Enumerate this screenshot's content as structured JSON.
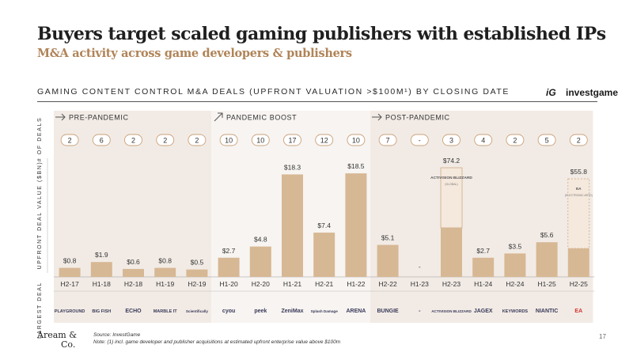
{
  "header": {
    "title": "Buyers target scaled gaming publishers with established IPs",
    "subtitle": "M&A activity across game developers & publishers",
    "chart_heading": "GAMING CONTENT CONTROL M&A DEALS (UPFRONT VALUATION >$100M¹) BY CLOSING DATE",
    "brand_icon": "iG",
    "brand_name": "investgame"
  },
  "footer": {
    "logo_line1": "Aream &",
    "logo_line2": "Co.",
    "source": "Source: InvestGame",
    "note": "Note: (1) incl. game developer and publisher acquisitions at estimated upfront enterprise value above $100m",
    "page_number": "17"
  },
  "chart_data": {
    "type": "bar",
    "title": "",
    "ylabel": "UPFRONT DEAL VALUE ($BN)",
    "row_label_deals": "# OF DEALS",
    "row_label_largest": "LARGEST DEAL",
    "periods": [
      {
        "name": "PRE-PANDEMIC",
        "arrow": "right",
        "start": 0,
        "end": 4
      },
      {
        "name": "PANDEMIC BOOST",
        "arrow": "up",
        "start": 5,
        "end": 9
      },
      {
        "name": "POST-PANDEMIC",
        "arrow": "right",
        "start": 10,
        "end": 16
      }
    ],
    "categories": [
      "H2-17",
      "H1-18",
      "H2-18",
      "H1-19",
      "H2-19",
      "H1-20",
      "H2-20",
      "H1-21",
      "H2-21",
      "H1-22",
      "H2-22",
      "H1-23",
      "H2-23",
      "H1-24",
      "H2-24",
      "H1-25",
      "H2-25"
    ],
    "values": [
      0.8,
      1.9,
      0.6,
      0.8,
      0.5,
      2.7,
      4.8,
      18.3,
      7.4,
      18.5,
      5.1,
      0,
      74.2,
      2.7,
      3.5,
      5.6,
      55.8
    ],
    "value_labels": [
      "$0.8",
      "$1.9",
      "$0.6",
      "$0.8",
      "$0.5",
      "$2.7",
      "$4.8",
      "$18.3",
      "$7.4",
      "$18.5",
      "$5.1",
      "-",
      "$74.2",
      "$2.7",
      "$3.5",
      "$5.6",
      "$55.8"
    ],
    "deal_counts": [
      "2",
      "6",
      "2",
      "2",
      "2",
      "10",
      "10",
      "17",
      "12",
      "10",
      "7",
      "-",
      "3",
      "4",
      "2",
      "5",
      "2"
    ],
    "largest_deals": [
      "PLAYGROUND",
      "BIG FISH",
      "ECHO",
      "MARBLE IT",
      "Scientifically",
      "cyou",
      "peek",
      "ZeniMax",
      "Splash Damage",
      "ARENA",
      "BUNGIE",
      "-",
      "ACTIVISION BLIZZARD",
      "JAGEX",
      "KEYWORDS",
      "NIANTIC",
      "EA"
    ],
    "large_deal_callouts": [
      {
        "index": 12,
        "logo": "ACTIVISION BLIZZARD",
        "note": "(GLOBAL)"
      },
      {
        "index": 16,
        "logo": "EA",
        "note": "(ELECTRONIC ARTS)"
      }
    ],
    "colors": {
      "bar": "#d7b894",
      "bg_a": "#f2ebe5",
      "bg_b": "#ece4dc",
      "accent": "#c9a27c",
      "text": "#333333"
    }
  }
}
